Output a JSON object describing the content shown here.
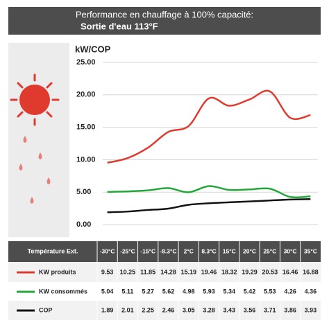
{
  "chart_data": {
    "type": "line",
    "title": "Performance en chauffage à 100% capacité:",
    "subtitle": "Sortie d'eau 113°F",
    "y_label": "kW/COP",
    "table_header": "Température Ext.",
    "categories": [
      "-30°C",
      "-25°C",
      "-15°C",
      "-8.3°C",
      "2°C",
      "8.3°C",
      "15°C",
      "20°C",
      "25°C",
      "30°C",
      "35°C"
    ],
    "series": [
      {
        "name": "KW produits",
        "color": "#e03a2f",
        "values": [
          9.53,
          10.25,
          11.85,
          14.28,
          15.19,
          19.46,
          18.32,
          19.29,
          20.53,
          16.46,
          16.88
        ]
      },
      {
        "name": "KW consommés",
        "color": "#22a838",
        "values": [
          5.04,
          5.11,
          5.27,
          5.62,
          4.98,
          5.93,
          5.34,
          5.42,
          5.53,
          4.26,
          4.36
        ]
      },
      {
        "name": "COP",
        "color": "#111111",
        "values": [
          1.89,
          2.01,
          2.25,
          2.46,
          3.05,
          3.28,
          3.43,
          3.56,
          3.71,
          3.86,
          3.93
        ]
      }
    ],
    "ylim": [
      0,
      25
    ],
    "yticks": [
      {
        "value": 0,
        "label": "0.00"
      },
      {
        "value": 5,
        "label": "5.00"
      },
      {
        "value": 10,
        "label": "10.00"
      },
      {
        "value": 15,
        "label": "15.00"
      },
      {
        "value": 20,
        "label": "20.00"
      },
      {
        "value": 25,
        "label": "25.00"
      }
    ],
    "grid": true
  }
}
